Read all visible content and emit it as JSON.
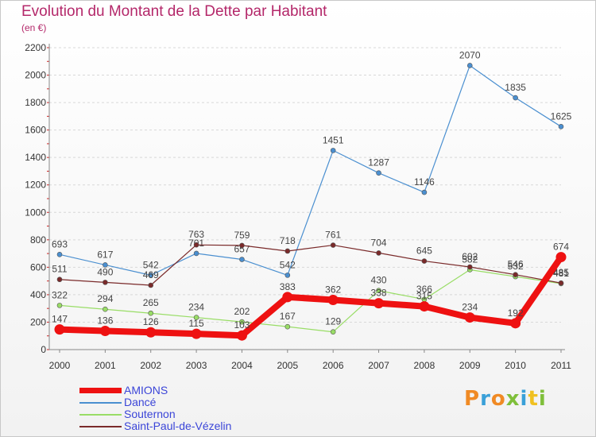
{
  "title": "Evolution du Montant de la Dette par Habitant",
  "subtitle": "(en €)",
  "logo": {
    "text": "Proxiti",
    "letter_colors": [
      "#f08a24",
      "#3aa0d8",
      "#f08a24",
      "#7fbf3a",
      "#3aa0d8",
      "#f0c020",
      "#7fbf3a"
    ]
  },
  "chart_data": {
    "type": "line",
    "x": [
      "2000",
      "2001",
      "2002",
      "2003",
      "2004",
      "2005",
      "2006",
      "2007",
      "2008",
      "2009",
      "2010",
      "2011"
    ],
    "ylim": [
      0,
      2200
    ],
    "yticks": [
      "0",
      "200",
      "400",
      "600",
      "800",
      "1000",
      "1200",
      "1400",
      "1600",
      "1800",
      "2000",
      "2200"
    ],
    "grid": true,
    "legend_position": "bottom-left",
    "series": [
      {
        "name": "AMIONS",
        "color": "#ee1111",
        "highlight": true,
        "values": [
          147,
          136,
          126,
          115,
          103,
          383,
          362,
          338,
          315,
          234,
          192,
          674
        ],
        "labels": [
          "147",
          "136",
          "126",
          "115",
          "103",
          "383",
          "362",
          "338",
          "315",
          "234",
          "192",
          "674"
        ]
      },
      {
        "name": "Dancé",
        "color": "#4a8fd0",
        "highlight": false,
        "values": [
          693,
          617,
          542,
          701,
          657,
          542,
          1451,
          1287,
          1146,
          2070,
          1835,
          1625
        ],
        "labels": [
          "693",
          "617",
          "542",
          "701",
          "657",
          "542",
          "1451",
          "1287",
          "1146",
          "2070",
          "1835",
          "1625"
        ]
      },
      {
        "name": "Souternon",
        "color": "#99dd66",
        "highlight": false,
        "values": [
          322,
          294,
          265,
          234,
          202,
          167,
          129,
          430,
          366,
          582,
          532,
          481
        ],
        "labels": [
          "322",
          "294",
          "265",
          "234",
          "202",
          "167",
          "129",
          "430",
          "366",
          "582",
          "532",
          "481"
        ]
      },
      {
        "name": "Saint-Paul-de-Vézelin",
        "color": "#7a2a2a",
        "highlight": false,
        "values": [
          511,
          490,
          469,
          763,
          759,
          718,
          761,
          704,
          645,
          602,
          546,
          485
        ],
        "labels": [
          "511",
          "490",
          "469",
          "763",
          "759",
          "718",
          "761",
          "704",
          "645",
          "602",
          "546",
          "485"
        ]
      }
    ]
  }
}
